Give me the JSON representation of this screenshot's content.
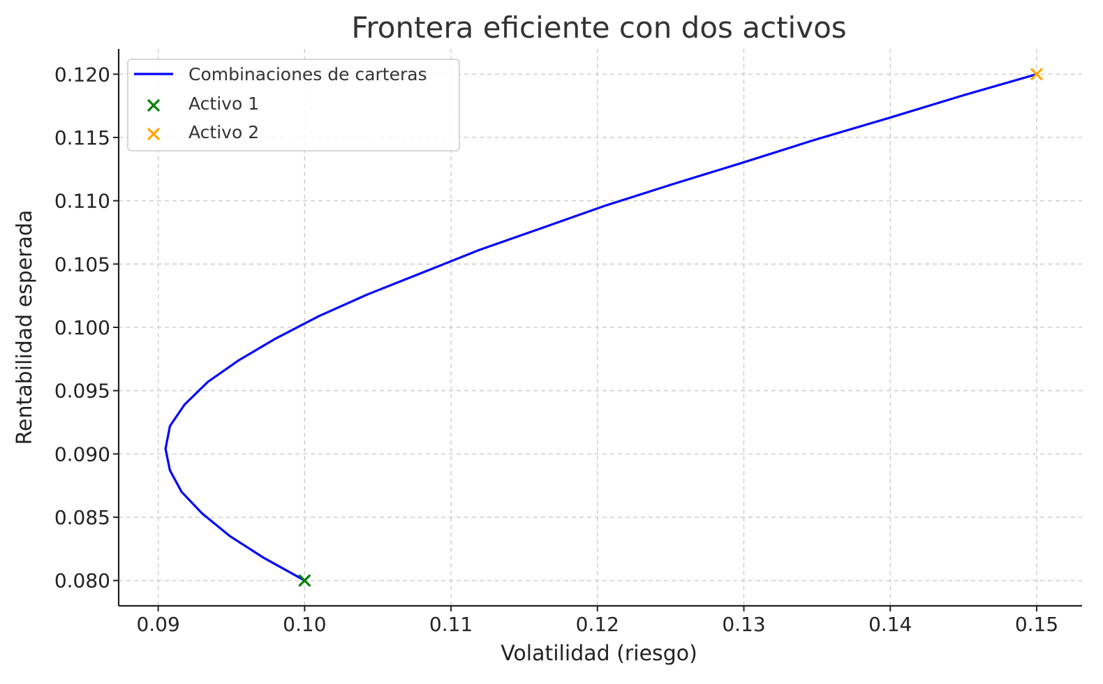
{
  "chart_data": {
    "type": "line",
    "title": "Frontera eficiente con dos activos",
    "xlabel": "Volatilidad (riesgo)",
    "ylabel": "Rentabilidad esperada",
    "xlim": [
      0.0873,
      0.1531
    ],
    "ylim": [
      0.078,
      0.122
    ],
    "x_ticks": [
      "0.09",
      "0.10",
      "0.11",
      "0.12",
      "0.13",
      "0.14",
      "0.15"
    ],
    "x_tick_values": [
      0.09,
      0.1,
      0.11,
      0.12,
      0.13,
      0.14,
      0.15
    ],
    "y_ticks": [
      "0.080",
      "0.085",
      "0.090",
      "0.095",
      "0.100",
      "0.105",
      "0.110",
      "0.115",
      "0.120"
    ],
    "y_tick_values": [
      0.08,
      0.085,
      0.09,
      0.095,
      0.1,
      0.105,
      0.11,
      0.115,
      0.12
    ],
    "grid": true,
    "legend_position": "top-left",
    "series": [
      {
        "name": "Combinaciones de carteras",
        "kind": "line",
        "color": "#0000ff",
        "x": [
          0.1,
          0.0972,
          0.0949,
          0.093,
          0.0916,
          0.0908,
          0.0905,
          0.0908,
          0.0918,
          0.0934,
          0.0955,
          0.098,
          0.101,
          0.1043,
          0.108,
          0.1119,
          0.1161,
          0.1205,
          0.1251,
          0.1299,
          0.1348,
          0.1398,
          0.1449,
          0.15
        ],
        "y": [
          0.08,
          0.0818,
          0.0835,
          0.0853,
          0.087,
          0.0887,
          0.0904,
          0.0922,
          0.0939,
          0.0957,
          0.0974,
          0.0991,
          0.1009,
          0.1026,
          0.1043,
          0.1061,
          0.1078,
          0.1096,
          0.1113,
          0.113,
          0.1148,
          0.1165,
          0.1183,
          0.12
        ]
      },
      {
        "name": "Activo 1",
        "kind": "marker",
        "marker": "x",
        "color": "#008000",
        "x": [
          0.1
        ],
        "y": [
          0.08
        ]
      },
      {
        "name": "Activo 2",
        "kind": "marker",
        "marker": "x",
        "color": "#ffa500",
        "x": [
          0.15
        ],
        "y": [
          0.12
        ]
      }
    ]
  }
}
